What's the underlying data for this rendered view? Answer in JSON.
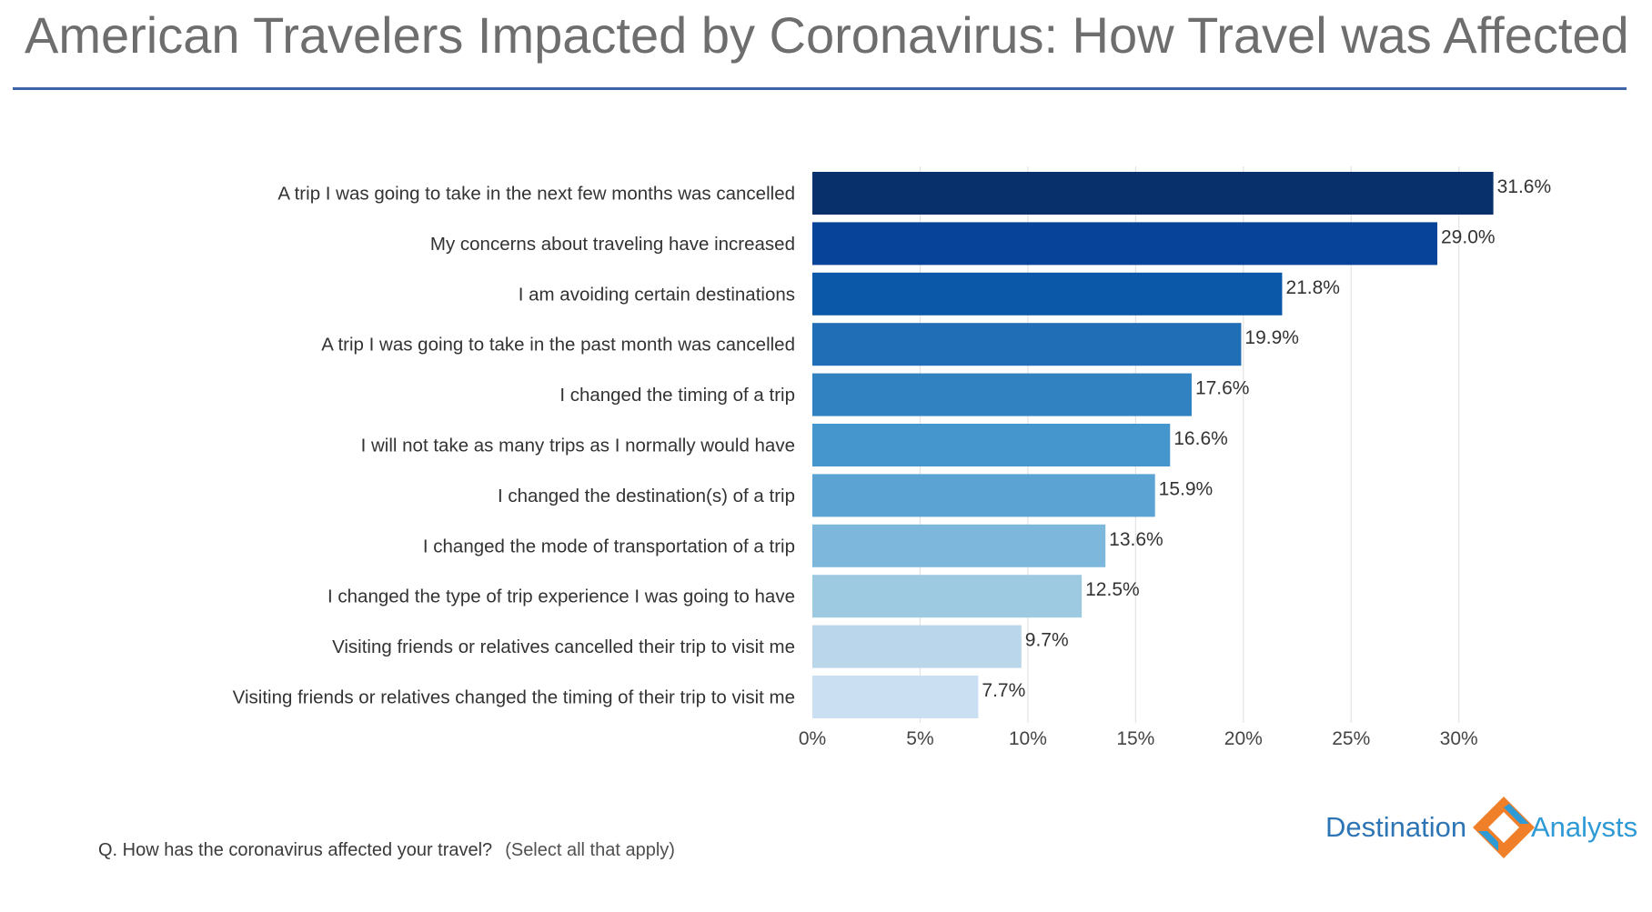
{
  "title": "American Travelers Impacted by Coronavirus: How Travel was Affected",
  "footer": {
    "question": "Q. How has the coronavirus affected your travel?",
    "note": "(Select all that apply)"
  },
  "logo": {
    "word_left": "Destination",
    "word_right": "Analysts",
    "colors": {
      "text": "#2e75b6",
      "diamond_orange": "#f07f2a",
      "diamond_blue": "#2e9ad6"
    }
  },
  "chart_data": {
    "type": "bar",
    "orientation": "horizontal",
    "categories": [
      "A trip I was going to take in the next few months was cancelled",
      "My concerns about traveling have increased",
      "I am avoiding certain destinations",
      "A trip I was going to take in the past month was cancelled",
      "I changed the timing of a trip",
      "I will not take as many trips as I normally would have",
      "I changed the destination(s) of a trip",
      "I changed the mode of transportation of a trip",
      "I changed the type of trip experience I was going to have",
      "Visiting friends or relatives cancelled their trip to visit me",
      "Visiting friends or relatives changed the timing of their trip to visit me"
    ],
    "values": [
      31.6,
      29.0,
      21.8,
      19.9,
      17.6,
      16.6,
      15.9,
      13.6,
      12.5,
      9.7,
      7.7
    ],
    "value_labels": [
      "31.6%",
      "29.0%",
      "21.8%",
      "19.9%",
      "17.6%",
      "16.6%",
      "15.9%",
      "13.6%",
      "12.5%",
      "9.7%",
      "7.7%"
    ],
    "bar_colors": [
      "#08306b",
      "#08439a",
      "#0b58a8",
      "#1f6eb6",
      "#3182c1",
      "#4596cc",
      "#5ba3d3",
      "#7db8dc",
      "#9ecae1",
      "#b9d6eb",
      "#cadff2"
    ],
    "xticks": [
      0,
      5,
      10,
      15,
      20,
      25,
      30
    ],
    "xtick_labels": [
      "0%",
      "5%",
      "10%",
      "15%",
      "20%",
      "25%",
      "30%"
    ],
    "xlim": [
      0,
      32
    ],
    "grid": true,
    "legend": "none"
  }
}
